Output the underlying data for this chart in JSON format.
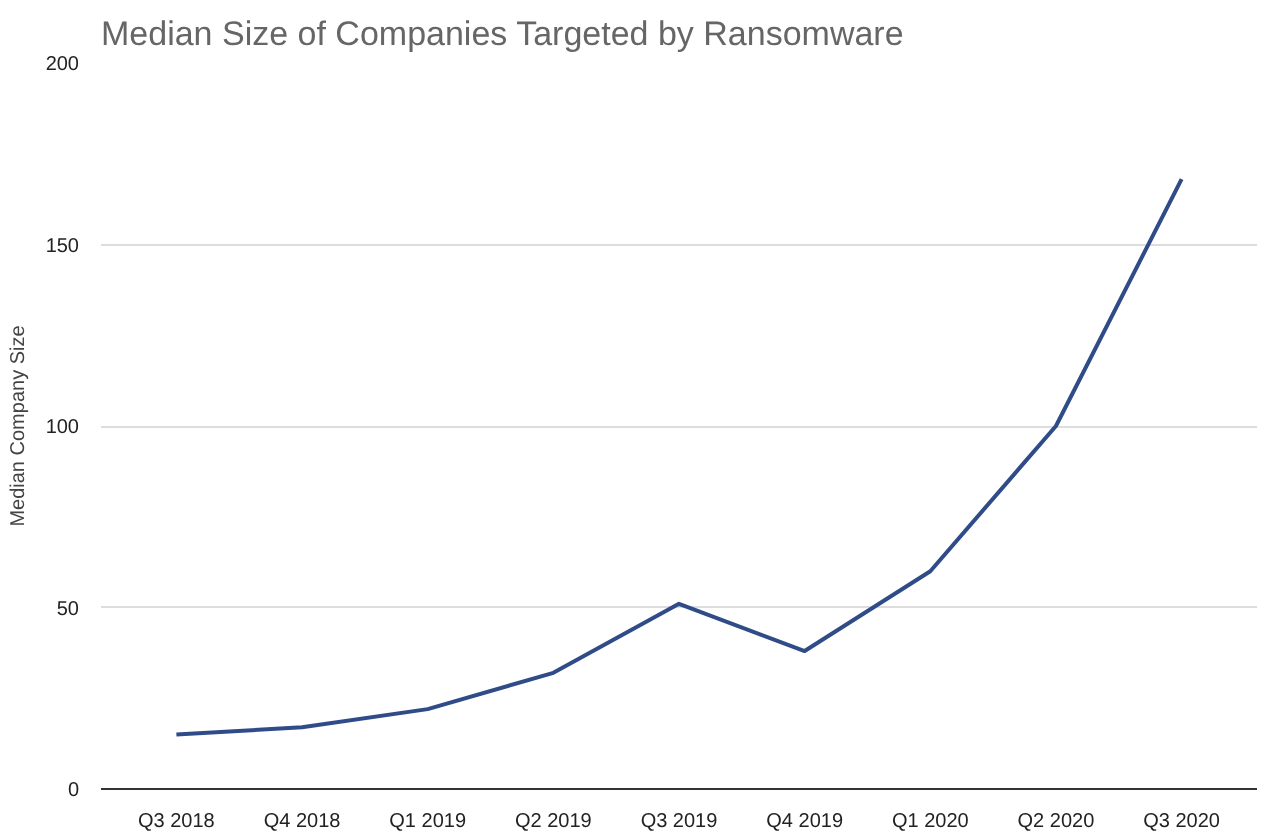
{
  "chart_data": {
    "type": "line",
    "title": "Median Size of Companies Targeted by Ransomware",
    "ylabel": "Median Company Size",
    "categories": [
      "Q3 2018",
      "Q4 2018",
      "Q1 2019",
      "Q2 2019",
      "Q3 2019",
      "Q4 2019",
      "Q1 2020",
      "Q2 2020",
      "Q3 2020"
    ],
    "series": [
      {
        "color": "#2f4b88",
        "values": [
          15,
          17,
          22,
          32,
          51,
          38,
          60,
          100,
          168
        ]
      }
    ],
    "ylim": [
      0,
      200
    ],
    "yticks": [
      0,
      50,
      100,
      150,
      200
    ],
    "grid": "y",
    "marker": "none",
    "line_style": "solid"
  }
}
